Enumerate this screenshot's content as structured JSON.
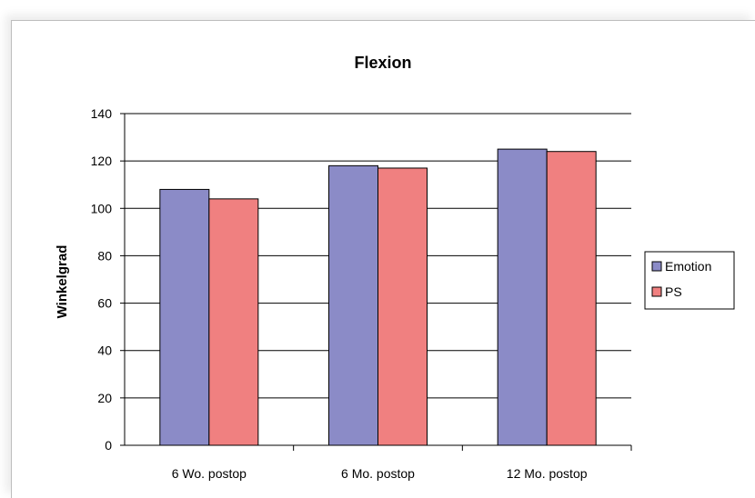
{
  "chart_data": {
    "type": "bar",
    "title": "Flexion",
    "xlabel": "",
    "ylabel": "Winkelgrad",
    "categories": [
      "6 Wo. postop",
      "6 Mo. postop",
      "12 Mo. postop"
    ],
    "series": [
      {
        "name": "Emotion",
        "color": "#8b8bc7",
        "values": [
          108,
          118,
          125
        ]
      },
      {
        "name": "PS",
        "color": "#f08080",
        "values": [
          104,
          117,
          124
        ]
      }
    ],
    "ylim": [
      0,
      140
    ],
    "yticks": [
      "0",
      "20",
      "40",
      "60",
      "80",
      "100",
      "120",
      "140"
    ],
    "grid": true,
    "legend": "right"
  }
}
